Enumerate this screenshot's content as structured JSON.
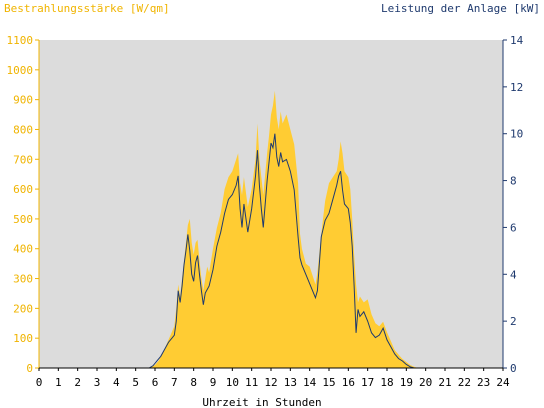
{
  "chart_data": {
    "type": "area",
    "left_axis_title": "Bestrahlungsstärke [W/qm]",
    "right_axis_title": "Leistung der Anlage [kW]",
    "xlabel": "Uhrzeit in Stunden",
    "x_ticks": [
      "0",
      "1",
      "2",
      "3",
      "4",
      "5",
      "6",
      "7",
      "8",
      "9",
      "10",
      "11",
      "12",
      "13",
      "14",
      "15",
      "16",
      "17",
      "18",
      "19",
      "20",
      "21",
      "22",
      "23",
      "24"
    ],
    "left_ticks": [
      "0",
      "100",
      "200",
      "300",
      "400",
      "500",
      "600",
      "700",
      "800",
      "900",
      "1000",
      "1100"
    ],
    "right_ticks": [
      "0",
      "2",
      "4",
      "6",
      "8",
      "10",
      "12",
      "14"
    ],
    "xlim": [
      0,
      24
    ],
    "ylim_left": [
      0,
      1100
    ],
    "ylim_right": [
      0,
      14
    ],
    "grid": false,
    "colors": {
      "plot_background": "#dcdcdc",
      "irradiance_fill": "#ffcc33",
      "power_line": "#1f3a6e",
      "left_axis_text": "#f0b400",
      "right_axis_text": "#1f3a6e",
      "axis_text": "#000000"
    },
    "series": [
      {
        "unit": "W/qm",
        "axis": "left",
        "points": [
          [
            0,
            0
          ],
          [
            5.6,
            0
          ],
          [
            5.8,
            3
          ],
          [
            6.0,
            10
          ],
          [
            6.2,
            25
          ],
          [
            6.4,
            50
          ],
          [
            6.6,
            80
          ],
          [
            6.8,
            110
          ],
          [
            7.0,
            140
          ],
          [
            7.1,
            200
          ],
          [
            7.2,
            280
          ],
          [
            7.3,
            240
          ],
          [
            7.4,
            300
          ],
          [
            7.5,
            360
          ],
          [
            7.6,
            420
          ],
          [
            7.7,
            480
          ],
          [
            7.8,
            500
          ],
          [
            7.9,
            420
          ],
          [
            8.0,
            380
          ],
          [
            8.1,
            420
          ],
          [
            8.2,
            430
          ],
          [
            8.3,
            360
          ],
          [
            8.4,
            300
          ],
          [
            8.5,
            260
          ],
          [
            8.6,
            300
          ],
          [
            8.7,
            340
          ],
          [
            8.8,
            320
          ],
          [
            9.0,
            400
          ],
          [
            9.2,
            470
          ],
          [
            9.4,
            520
          ],
          [
            9.6,
            600
          ],
          [
            9.8,
            640
          ],
          [
            10.0,
            660
          ],
          [
            10.2,
            700
          ],
          [
            10.3,
            720
          ],
          [
            10.4,
            620
          ],
          [
            10.5,
            580
          ],
          [
            10.6,
            640
          ],
          [
            10.8,
            540
          ],
          [
            11.0,
            600
          ],
          [
            11.2,
            700
          ],
          [
            11.3,
            820
          ],
          [
            11.4,
            700
          ],
          [
            11.5,
            640
          ],
          [
            11.6,
            580
          ],
          [
            11.8,
            720
          ],
          [
            11.9,
            780
          ],
          [
            12.0,
            850
          ],
          [
            12.1,
            880
          ],
          [
            12.2,
            930
          ],
          [
            12.3,
            840
          ],
          [
            12.4,
            800
          ],
          [
            12.5,
            860
          ],
          [
            12.6,
            820
          ],
          [
            12.8,
            850
          ],
          [
            13.0,
            800
          ],
          [
            13.2,
            750
          ],
          [
            13.4,
            620
          ],
          [
            13.5,
            450
          ],
          [
            13.6,
            400
          ],
          [
            13.8,
            350
          ],
          [
            14.0,
            340
          ],
          [
            14.2,
            300
          ],
          [
            14.3,
            280
          ],
          [
            14.4,
            320
          ],
          [
            14.6,
            450
          ],
          [
            14.8,
            560
          ],
          [
            15.0,
            620
          ],
          [
            15.2,
            640
          ],
          [
            15.4,
            660
          ],
          [
            15.5,
            700
          ],
          [
            15.6,
            760
          ],
          [
            15.7,
            720
          ],
          [
            15.8,
            660
          ],
          [
            16.0,
            640
          ],
          [
            16.1,
            600
          ],
          [
            16.2,
            500
          ],
          [
            16.3,
            380
          ],
          [
            16.4,
            280
          ],
          [
            16.5,
            220
          ],
          [
            16.6,
            240
          ],
          [
            16.8,
            220
          ],
          [
            17.0,
            230
          ],
          [
            17.2,
            180
          ],
          [
            17.4,
            150
          ],
          [
            17.6,
            140
          ],
          [
            17.8,
            155
          ],
          [
            18.0,
            120
          ],
          [
            18.2,
            90
          ],
          [
            18.4,
            60
          ],
          [
            18.6,
            45
          ],
          [
            18.8,
            30
          ],
          [
            19.0,
            20
          ],
          [
            19.2,
            10
          ],
          [
            19.4,
            4
          ],
          [
            19.6,
            0
          ],
          [
            24,
            0
          ]
        ]
      },
      {
        "unit": "kW",
        "axis": "right",
        "points": [
          [
            0,
            0
          ],
          [
            5.7,
            0
          ],
          [
            5.9,
            0.1
          ],
          [
            6.1,
            0.3
          ],
          [
            6.3,
            0.5
          ],
          [
            6.5,
            0.8
          ],
          [
            6.7,
            1.1
          ],
          [
            6.9,
            1.3
          ],
          [
            7.0,
            1.4
          ],
          [
            7.1,
            2.0
          ],
          [
            7.2,
            3.3
          ],
          [
            7.3,
            2.8
          ],
          [
            7.4,
            3.5
          ],
          [
            7.5,
            4.4
          ],
          [
            7.6,
            5.0
          ],
          [
            7.7,
            5.7
          ],
          [
            7.8,
            5.0
          ],
          [
            7.9,
            4.0
          ],
          [
            8.0,
            3.7
          ],
          [
            8.1,
            4.5
          ],
          [
            8.2,
            4.8
          ],
          [
            8.3,
            4.0
          ],
          [
            8.4,
            3.3
          ],
          [
            8.5,
            2.7
          ],
          [
            8.6,
            3.2
          ],
          [
            8.8,
            3.5
          ],
          [
            9.0,
            4.2
          ],
          [
            9.2,
            5.2
          ],
          [
            9.4,
            5.8
          ],
          [
            9.6,
            6.6
          ],
          [
            9.8,
            7.2
          ],
          [
            10.0,
            7.4
          ],
          [
            10.2,
            7.8
          ],
          [
            10.3,
            8.2
          ],
          [
            10.4,
            6.8
          ],
          [
            10.5,
            6.0
          ],
          [
            10.6,
            7.0
          ],
          [
            10.8,
            5.8
          ],
          [
            11.0,
            6.8
          ],
          [
            11.2,
            8.2
          ],
          [
            11.3,
            9.3
          ],
          [
            11.4,
            7.8
          ],
          [
            11.5,
            6.8
          ],
          [
            11.6,
            6.0
          ],
          [
            11.8,
            8.0
          ],
          [
            11.9,
            8.8
          ],
          [
            12.0,
            9.6
          ],
          [
            12.1,
            9.4
          ],
          [
            12.2,
            10.0
          ],
          [
            12.3,
            9.0
          ],
          [
            12.4,
            8.6
          ],
          [
            12.5,
            9.2
          ],
          [
            12.6,
            8.8
          ],
          [
            12.8,
            8.9
          ],
          [
            13.0,
            8.4
          ],
          [
            13.2,
            7.6
          ],
          [
            13.4,
            5.6
          ],
          [
            13.5,
            4.7
          ],
          [
            13.6,
            4.4
          ],
          [
            13.8,
            4.0
          ],
          [
            14.0,
            3.6
          ],
          [
            14.2,
            3.2
          ],
          [
            14.3,
            3.0
          ],
          [
            14.4,
            3.3
          ],
          [
            14.6,
            5.6
          ],
          [
            14.8,
            6.3
          ],
          [
            15.0,
            6.6
          ],
          [
            15.2,
            7.2
          ],
          [
            15.4,
            7.8
          ],
          [
            15.5,
            8.2
          ],
          [
            15.6,
            8.4
          ],
          [
            15.7,
            7.6
          ],
          [
            15.8,
            7.0
          ],
          [
            16.0,
            6.8
          ],
          [
            16.1,
            6.2
          ],
          [
            16.2,
            5.2
          ],
          [
            16.3,
            3.5
          ],
          [
            16.4,
            1.5
          ],
          [
            16.5,
            2.5
          ],
          [
            16.6,
            2.2
          ],
          [
            16.8,
            2.4
          ],
          [
            17.0,
            2.0
          ],
          [
            17.2,
            1.5
          ],
          [
            17.4,
            1.3
          ],
          [
            17.6,
            1.4
          ],
          [
            17.8,
            1.7
          ],
          [
            18.0,
            1.2
          ],
          [
            18.2,
            0.9
          ],
          [
            18.4,
            0.6
          ],
          [
            18.6,
            0.4
          ],
          [
            18.8,
            0.3
          ],
          [
            19.0,
            0.15
          ],
          [
            19.2,
            0.05
          ],
          [
            19.4,
            0
          ],
          [
            24,
            0
          ]
        ]
      }
    ]
  }
}
